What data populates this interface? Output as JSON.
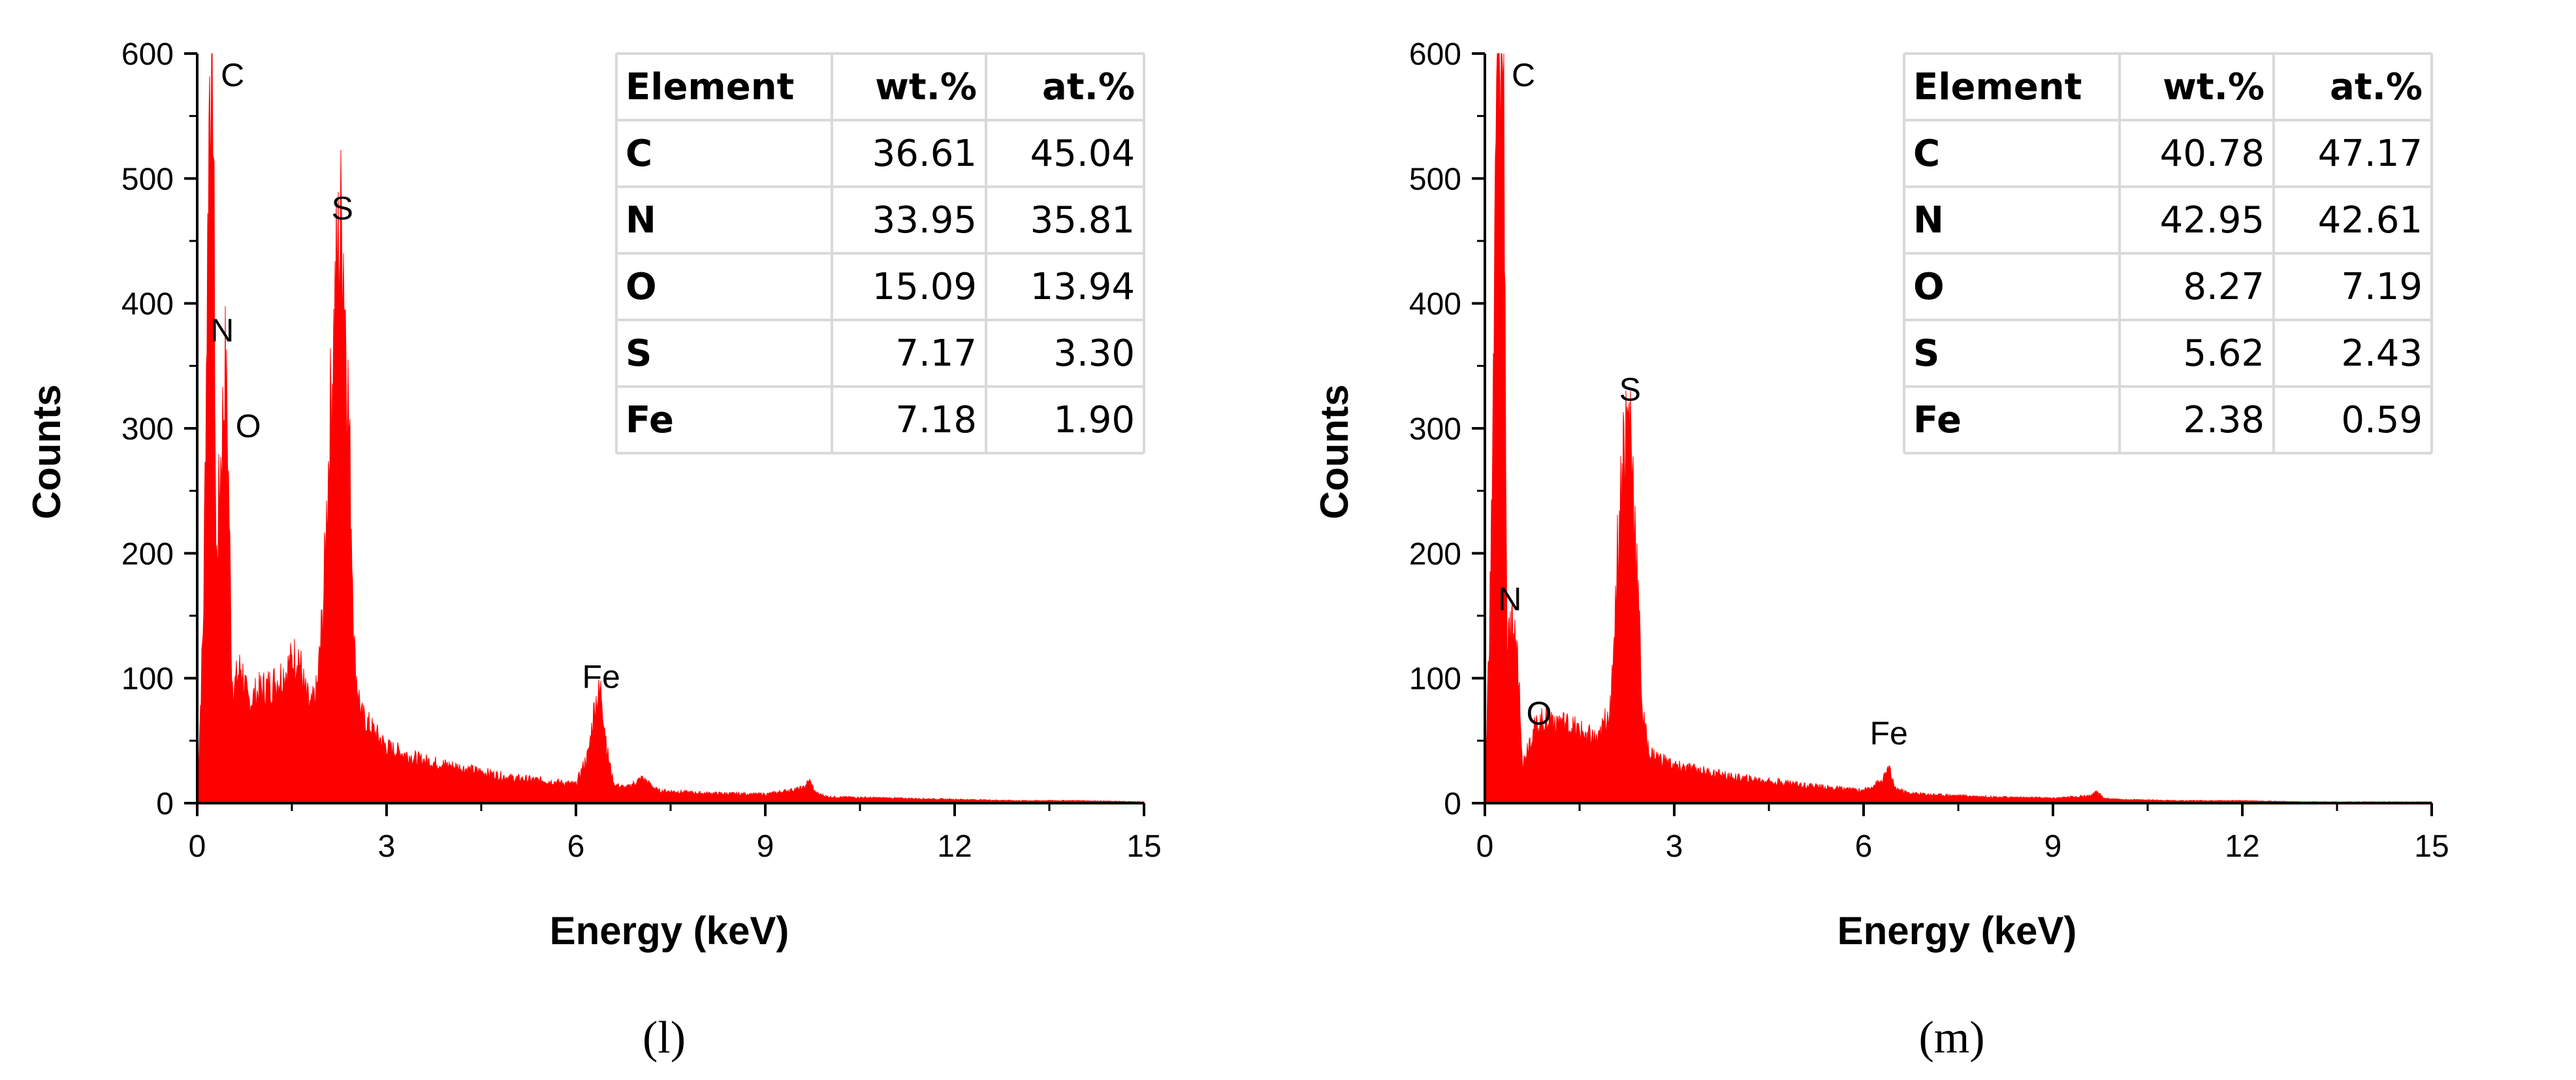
{
  "chart_data": [
    {
      "type": "area",
      "panel_label": "(l)",
      "xlabel": "Energy (keV)",
      "ylabel": "Counts",
      "xlim": [
        0,
        15
      ],
      "ylim": [
        0,
        600
      ],
      "xticks": [
        0,
        3,
        6,
        9,
        12,
        15
      ],
      "yticks": [
        0,
        100,
        200,
        300,
        400,
        500,
        600
      ],
      "grid": false,
      "color": "#ff0000",
      "series": [
        {
          "x": [
            0,
            0.1,
            0.2,
            0.25,
            0.3,
            0.35,
            0.4,
            0.45,
            0.5,
            0.55,
            0.6,
            0.7,
            0.8,
            1.0,
            1.2,
            1.4,
            1.6,
            1.7,
            1.8,
            1.9,
            2.0,
            2.1,
            2.2,
            2.3,
            2.4,
            2.5,
            2.6,
            3.0,
            3.5,
            4.0,
            4.5,
            5.0,
            5.5,
            6.0,
            6.2,
            6.3,
            6.4,
            6.5,
            6.6,
            6.8,
            7.05,
            7.3,
            8.0,
            9.0,
            9.6,
            9.7,
            9.8,
            10.0,
            11.0,
            12.0,
            13.0,
            14.0,
            15.0
          ],
          "y": [
            0,
            150,
            600,
            600,
            180,
            250,
            300,
            350,
            250,
            100,
            95,
            110,
            80,
            90,
            95,
            105,
            120,
            90,
            75,
            90,
            160,
            300,
            420,
            470,
            310,
            110,
            70,
            45,
            35,
            30,
            25,
            20,
            18,
            15,
            40,
            80,
            90,
            40,
            15,
            12,
            20,
            10,
            8,
            7,
            12,
            18,
            8,
            5,
            4,
            3,
            2,
            2,
            1
          ]
        }
      ],
      "peak_labels": [
        {
          "text": "C",
          "x": 0.25,
          "y": 600
        },
        {
          "text": "N",
          "x": 0.5,
          "y": 380
        },
        {
          "text": "O",
          "x": 0.55,
          "y": 340
        },
        {
          "text": "S",
          "x": 2.3,
          "y": 475
        },
        {
          "text": "Fe",
          "x": 6.4,
          "y": 100
        }
      ],
      "table": {
        "headers": [
          "Element",
          "wt.%",
          "at.%"
        ],
        "rows": [
          [
            "C",
            "36.61",
            "45.04"
          ],
          [
            "N",
            "33.95",
            "35.81"
          ],
          [
            "O",
            "15.09",
            "13.94"
          ],
          [
            "S",
            "7.17",
            "3.30"
          ],
          [
            "Fe",
            "7.18",
            "1.90"
          ]
        ]
      }
    },
    {
      "type": "area",
      "panel_label": "(m)",
      "xlabel": "Energy (keV)",
      "ylabel": "Counts",
      "xlim": [
        0,
        15
      ],
      "ylim": [
        0,
        600
      ],
      "xticks": [
        0,
        3,
        6,
        9,
        12,
        15
      ],
      "yticks": [
        0,
        100,
        200,
        300,
        400,
        500,
        600
      ],
      "grid": false,
      "color": "#ff0000",
      "series": [
        {
          "x": [
            0,
            0.1,
            0.2,
            0.25,
            0.3,
            0.35,
            0.4,
            0.45,
            0.5,
            0.55,
            0.6,
            0.7,
            0.8,
            1.0,
            1.2,
            1.4,
            1.6,
            1.8,
            2.0,
            2.1,
            2.2,
            2.3,
            2.4,
            2.5,
            2.6,
            3.0,
            3.5,
            4.0,
            4.5,
            5.0,
            5.5,
            6.0,
            6.3,
            6.4,
            6.5,
            6.7,
            7.0,
            8.0,
            9.0,
            9.6,
            9.7,
            9.8,
            10.0,
            11.0,
            12.0,
            13.0,
            14.0,
            15.0
          ],
          "y": [
            0,
            200,
            600,
            600,
            600,
            120,
            130,
            140,
            125,
            90,
            30,
            50,
            60,
            70,
            65,
            60,
            55,
            50,
            80,
            200,
            290,
            310,
            200,
            70,
            40,
            30,
            25,
            20,
            18,
            15,
            12,
            10,
            18,
            28,
            12,
            8,
            7,
            5,
            4,
            6,
            9,
            4,
            3,
            2,
            2,
            1,
            1,
            1
          ]
        }
      ],
      "peak_labels": [
        {
          "text": "C",
          "x": 0.3,
          "y": 600
        },
        {
          "text": "N",
          "x": 0.5,
          "y": 165
        },
        {
          "text": "O",
          "x": 0.6,
          "y": 110
        },
        {
          "text": "S",
          "x": 2.3,
          "y": 330
        },
        {
          "text": "Fe",
          "x": 6.4,
          "y": 55
        }
      ],
      "table": {
        "headers": [
          "Element",
          "wt.%",
          "at.%"
        ],
        "rows": [
          [
            "C",
            "40.78",
            "47.17"
          ],
          [
            "N",
            "42.95",
            "42.61"
          ],
          [
            "O",
            "8.27",
            "7.19"
          ],
          [
            "S",
            "5.62",
            "2.43"
          ],
          [
            "Fe",
            "2.38",
            "0.59"
          ]
        ]
      }
    }
  ]
}
